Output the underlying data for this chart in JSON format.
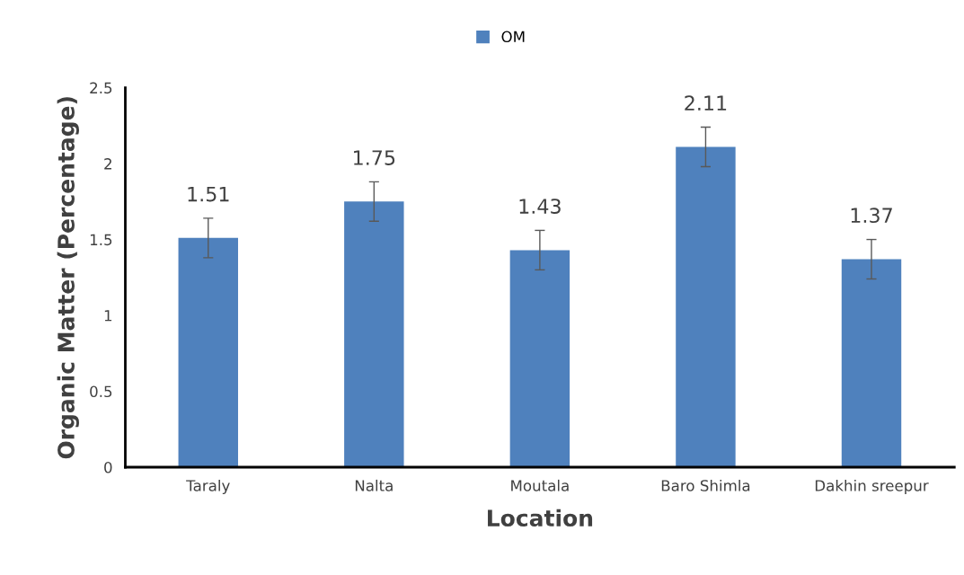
{
  "chart_data": {
    "type": "bar",
    "xlabel": "Location",
    "ylabel": "Organic Matter (Percentage)",
    "categories": [
      "Taraly",
      "Nalta",
      "Moutala",
      "Baro Shimla",
      "Dakhin sreepur"
    ],
    "series": [
      {
        "name": "OM",
        "color": "#4f81bd",
        "values": [
          1.51,
          1.75,
          1.43,
          2.11,
          1.37
        ],
        "errors": [
          0.13,
          0.13,
          0.13,
          0.13,
          0.13
        ]
      }
    ],
    "ylim": [
      0,
      2.5
    ],
    "yticks": [
      0,
      0.5,
      1,
      1.5,
      2,
      2.5
    ],
    "data_labels": true,
    "legend": "top",
    "grid": false
  }
}
